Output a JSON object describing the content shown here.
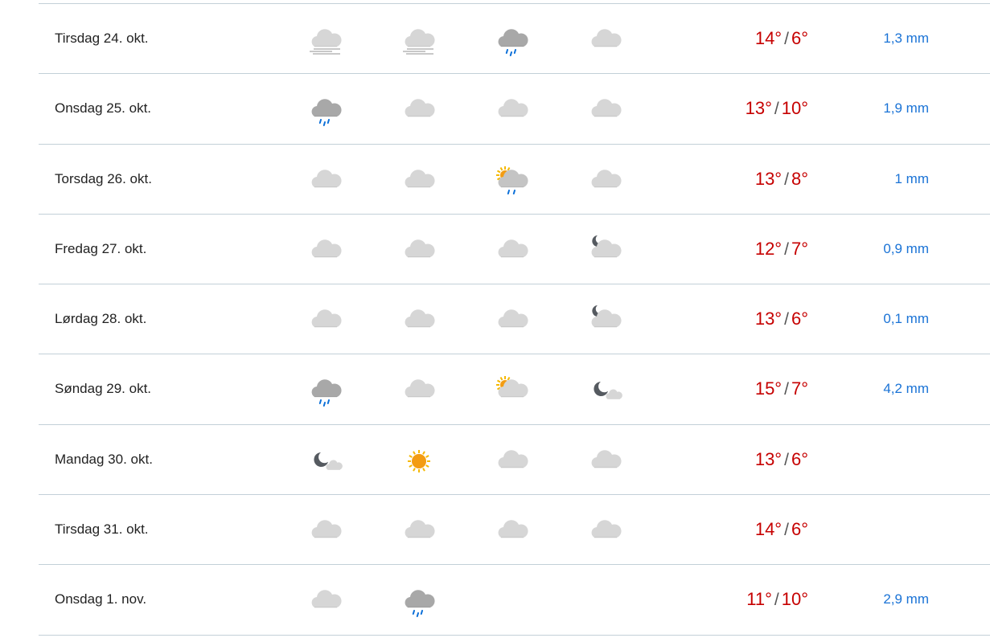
{
  "colors": {
    "temp": "#c60000",
    "precip": "#1a73d6",
    "divider": "#c3d0d8"
  },
  "rows": [
    {
      "day": "Tirsdag 24. okt.",
      "icons": [
        "cloudy-fog",
        "cloudy-fog",
        "rain",
        "cloudy"
      ],
      "max": "14°",
      "min": "6°",
      "precip": "1,3 mm"
    },
    {
      "day": "Onsdag 25. okt.",
      "icons": [
        "rain",
        "cloudy",
        "cloudy",
        "cloudy"
      ],
      "max": "13°",
      "min": "10°",
      "precip": "1,9 mm"
    },
    {
      "day": "Torsdag 26. okt.",
      "icons": [
        "cloudy",
        "cloudy",
        "partlycloudy-day-rain",
        "cloudy"
      ],
      "max": "13°",
      "min": "8°",
      "precip": "1 mm"
    },
    {
      "day": "Fredag 27. okt.",
      "icons": [
        "cloudy",
        "cloudy",
        "cloudy",
        "partlycloudy-night"
      ],
      "max": "12°",
      "min": "7°",
      "precip": "0,9 mm"
    },
    {
      "day": "Lørdag 28. okt.",
      "icons": [
        "cloudy",
        "cloudy",
        "cloudy",
        "partlycloudy-night"
      ],
      "max": "13°",
      "min": "6°",
      "precip": "0,1 mm"
    },
    {
      "day": "Søndag 29. okt.",
      "icons": [
        "rain",
        "cloudy",
        "partlycloudy-day",
        "fair-night"
      ],
      "max": "15°",
      "min": "7°",
      "precip": "4,2 mm"
    },
    {
      "day": "Mandag 30. okt.",
      "icons": [
        "fair-night",
        "clear-day",
        "cloudy",
        "cloudy"
      ],
      "max": "13°",
      "min": "6°",
      "precip": ""
    },
    {
      "day": "Tirsdag 31. okt.",
      "icons": [
        "cloudy",
        "cloudy",
        "cloudy",
        "cloudy"
      ],
      "max": "14°",
      "min": "6°",
      "precip": ""
    },
    {
      "day": "Onsdag 1. nov.",
      "icons": [
        "cloudy",
        "rain",
        "",
        ""
      ],
      "max": "11°",
      "min": "10°",
      "precip": "2,9 mm"
    }
  ],
  "separator": "/"
}
